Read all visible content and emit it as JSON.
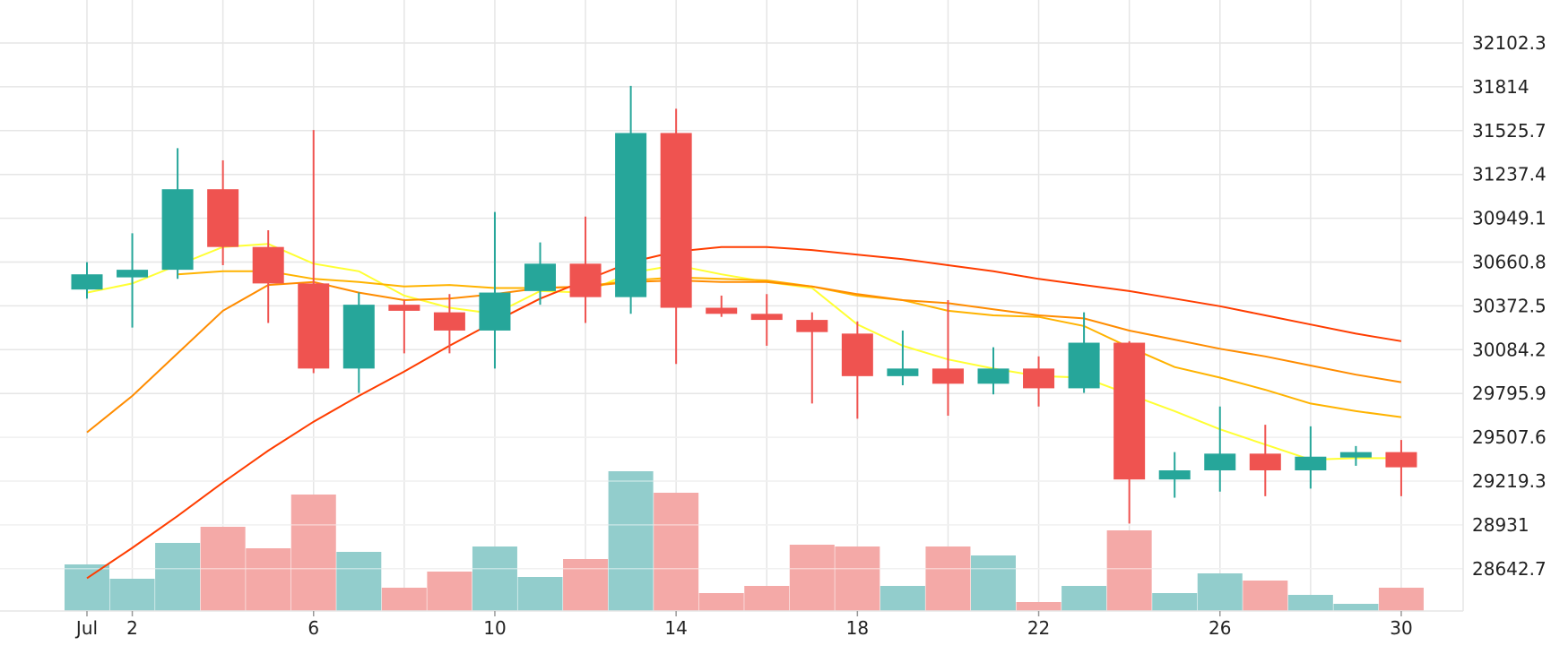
{
  "chart_data": {
    "type": "candlestick",
    "x_tick_labels": [
      {
        "day": 1,
        "label": "Jul"
      },
      {
        "day": 2,
        "label": "2"
      },
      {
        "day": 6,
        "label": "6"
      },
      {
        "day": 10,
        "label": "10"
      },
      {
        "day": 14,
        "label": "14"
      },
      {
        "day": 18,
        "label": "18"
      },
      {
        "day": 22,
        "label": "22"
      },
      {
        "day": 26,
        "label": "26"
      },
      {
        "day": 30,
        "label": "30"
      }
    ],
    "y_ticks": [
      "32102.3",
      "31814",
      "31525.7",
      "31237.4",
      "30949.1",
      "30660.8",
      "30372.5",
      "30084.2",
      "29795.9",
      "29507.6",
      "29219.3",
      "28931",
      "28642.7"
    ],
    "y_tick_values": [
      32102.3,
      31814,
      31525.7,
      31237.4,
      30949.1,
      30660.8,
      30372.5,
      30084.2,
      29795.9,
      29507.6,
      29219.3,
      28931,
      28642.7
    ],
    "grid": true,
    "colors": {
      "up": "#26a69a",
      "down": "#ef5350",
      "volume_up": "#92cdcc",
      "volume_down": "#f4a9a7",
      "ma_lines": [
        "#ffff33",
        "#ffb300",
        "#ff8c00",
        "#ff3d00"
      ],
      "grid": "#e6e6e6"
    },
    "candles": [
      {
        "day": 1,
        "open": 30480,
        "close": 30580,
        "high": 30660,
        "low": 30420,
        "volume": 0.26
      },
      {
        "day": 2,
        "open": 30560,
        "close": 30610,
        "high": 30850,
        "low": 30230,
        "volume": 0.18
      },
      {
        "day": 3,
        "open": 30610,
        "close": 31140,
        "high": 31410,
        "low": 30550,
        "volume": 0.38
      },
      {
        "day": 4,
        "open": 31140,
        "close": 30760,
        "high": 31330,
        "low": 30640,
        "volume": 0.47
      },
      {
        "day": 5,
        "open": 30760,
        "close": 30520,
        "high": 30870,
        "low": 30260,
        "volume": 0.35
      },
      {
        "day": 6,
        "open": 30520,
        "close": 29960,
        "high": 31530,
        "low": 29930,
        "volume": 0.65
      },
      {
        "day": 7,
        "open": 29960,
        "close": 30380,
        "high": 30460,
        "low": 29800,
        "volume": 0.33
      },
      {
        "day": 8,
        "open": 30380,
        "close": 30340,
        "high": 30410,
        "low": 30060,
        "volume": 0.13
      },
      {
        "day": 9,
        "open": 30330,
        "close": 30210,
        "high": 30450,
        "low": 30060,
        "volume": 0.22
      },
      {
        "day": 10,
        "open": 30210,
        "close": 30460,
        "high": 30990,
        "low": 29960,
        "volume": 0.36
      },
      {
        "day": 11,
        "open": 30470,
        "close": 30650,
        "high": 30790,
        "low": 30380,
        "volume": 0.19
      },
      {
        "day": 12,
        "open": 30650,
        "close": 30430,
        "high": 30960,
        "low": 30260,
        "volume": 0.29
      },
      {
        "day": 13,
        "open": 30430,
        "close": 31510,
        "high": 31820,
        "low": 30320,
        "volume": 0.78
      },
      {
        "day": 14,
        "open": 31510,
        "close": 30360,
        "high": 31670,
        "low": 29990,
        "volume": 0.66
      },
      {
        "day": 15,
        "open": 30360,
        "close": 30320,
        "high": 30440,
        "low": 30300,
        "volume": 0.1
      },
      {
        "day": 16,
        "open": 30320,
        "close": 30280,
        "high": 30450,
        "low": 30110,
        "volume": 0.14
      },
      {
        "day": 17,
        "open": 30280,
        "close": 30200,
        "high": 30330,
        "low": 29730,
        "volume": 0.37
      },
      {
        "day": 18,
        "open": 30190,
        "close": 29910,
        "high": 30270,
        "low": 29630,
        "volume": 0.36
      },
      {
        "day": 19,
        "open": 29910,
        "close": 29960,
        "high": 30210,
        "low": 29850,
        "volume": 0.14
      },
      {
        "day": 20,
        "open": 29960,
        "close": 29860,
        "high": 30410,
        "low": 29650,
        "volume": 0.36
      },
      {
        "day": 21,
        "open": 29860,
        "close": 29960,
        "high": 30100,
        "low": 29790,
        "volume": 0.31
      },
      {
        "day": 22,
        "open": 29960,
        "close": 29830,
        "high": 30040,
        "low": 29710,
        "volume": 0.05
      },
      {
        "day": 23,
        "open": 29830,
        "close": 30130,
        "high": 30330,
        "low": 29800,
        "volume": 0.14
      },
      {
        "day": 24,
        "open": 30130,
        "close": 29230,
        "high": 30140,
        "low": 28940,
        "volume": 0.45
      },
      {
        "day": 25,
        "open": 29230,
        "close": 29290,
        "high": 29410,
        "low": 29110,
        "volume": 0.1
      },
      {
        "day": 26,
        "open": 29290,
        "close": 29400,
        "high": 29710,
        "low": 29150,
        "volume": 0.21
      },
      {
        "day": 27,
        "open": 29400,
        "close": 29290,
        "high": 29590,
        "low": 29120,
        "volume": 0.17
      },
      {
        "day": 28,
        "open": 29290,
        "close": 29380,
        "high": 29580,
        "low": 29170,
        "volume": 0.09
      },
      {
        "day": 29,
        "open": 29380,
        "close": 29410,
        "high": 29450,
        "low": 29320,
        "volume": 0.04
      },
      {
        "day": 30,
        "open": 29410,
        "close": 29310,
        "high": 29490,
        "low": 29120,
        "volume": 0.13
      }
    ],
    "moving_averages": [
      {
        "color": "#ffff33",
        "values": [
          [
            1,
            30460
          ],
          [
            2,
            30520
          ],
          [
            3,
            30640
          ],
          [
            4,
            30760
          ],
          [
            5,
            30780
          ],
          [
            6,
            30650
          ],
          [
            7,
            30600
          ],
          [
            8,
            30440
          ],
          [
            9,
            30360
          ],
          [
            10,
            30320
          ],
          [
            11,
            30470
          ],
          [
            12,
            30460
          ],
          [
            13,
            30590
          ],
          [
            14,
            30640
          ],
          [
            15,
            30580
          ],
          [
            16,
            30530
          ],
          [
            17,
            30490
          ],
          [
            18,
            30250
          ],
          [
            19,
            30110
          ],
          [
            20,
            30020
          ],
          [
            21,
            29960
          ],
          [
            22,
            29910
          ],
          [
            23,
            29900
          ],
          [
            24,
            29790
          ],
          [
            25,
            29680
          ],
          [
            26,
            29560
          ],
          [
            27,
            29460
          ],
          [
            28,
            29360
          ],
          [
            29,
            29370
          ],
          [
            30,
            29370
          ]
        ]
      },
      {
        "color": "#ffb300",
        "values": [
          [
            3,
            30580
          ],
          [
            4,
            30600
          ],
          [
            5,
            30600
          ],
          [
            6,
            30550
          ],
          [
            7,
            30530
          ],
          [
            8,
            30500
          ],
          [
            9,
            30510
          ],
          [
            10,
            30490
          ],
          [
            11,
            30490
          ],
          [
            12,
            30500
          ],
          [
            13,
            30540
          ],
          [
            14,
            30560
          ],
          [
            15,
            30550
          ],
          [
            16,
            30540
          ],
          [
            17,
            30500
          ],
          [
            18,
            30440
          ],
          [
            19,
            30410
          ],
          [
            20,
            30340
          ],
          [
            21,
            30310
          ],
          [
            22,
            30300
          ],
          [
            23,
            30240
          ],
          [
            24,
            30100
          ],
          [
            25,
            29970
          ],
          [
            26,
            29900
          ],
          [
            27,
            29820
          ],
          [
            28,
            29730
          ],
          [
            29,
            29680
          ],
          [
            30,
            29640
          ]
        ]
      },
      {
        "color": "#ff8c00",
        "values": [
          [
            1,
            29540
          ],
          [
            2,
            29780
          ],
          [
            3,
            30060
          ],
          [
            4,
            30340
          ],
          [
            5,
            30510
          ],
          [
            6,
            30530
          ],
          [
            7,
            30460
          ],
          [
            8,
            30410
          ],
          [
            9,
            30420
          ],
          [
            10,
            30450
          ],
          [
            11,
            30490
          ],
          [
            12,
            30500
          ],
          [
            13,
            30530
          ],
          [
            14,
            30540
          ],
          [
            15,
            30530
          ],
          [
            16,
            30530
          ],
          [
            17,
            30500
          ],
          [
            18,
            30450
          ],
          [
            19,
            30410
          ],
          [
            20,
            30390
          ],
          [
            21,
            30350
          ],
          [
            22,
            30310
          ],
          [
            23,
            30290
          ],
          [
            24,
            30210
          ],
          [
            25,
            30150
          ],
          [
            26,
            30090
          ],
          [
            27,
            30040
          ],
          [
            28,
            29980
          ],
          [
            29,
            29920
          ],
          [
            30,
            29870
          ]
        ]
      },
      {
        "color": "#ff3d00",
        "values": [
          [
            1,
            28580
          ],
          [
            2,
            28780
          ],
          [
            3,
            28990
          ],
          [
            4,
            29210
          ],
          [
            5,
            29420
          ],
          [
            6,
            29610
          ],
          [
            7,
            29780
          ],
          [
            8,
            29940
          ],
          [
            9,
            30110
          ],
          [
            10,
            30270
          ],
          [
            11,
            30420
          ],
          [
            12,
            30540
          ],
          [
            13,
            30660
          ],
          [
            14,
            30730
          ],
          [
            15,
            30760
          ],
          [
            16,
            30760
          ],
          [
            17,
            30740
          ],
          [
            18,
            30710
          ],
          [
            19,
            30680
          ],
          [
            20,
            30640
          ],
          [
            21,
            30600
          ],
          [
            22,
            30550
          ],
          [
            23,
            30510
          ],
          [
            24,
            30470
          ],
          [
            25,
            30420
          ],
          [
            26,
            30370
          ],
          [
            27,
            30310
          ],
          [
            28,
            30250
          ],
          [
            29,
            30190
          ],
          [
            30,
            30140
          ]
        ]
      }
    ]
  }
}
